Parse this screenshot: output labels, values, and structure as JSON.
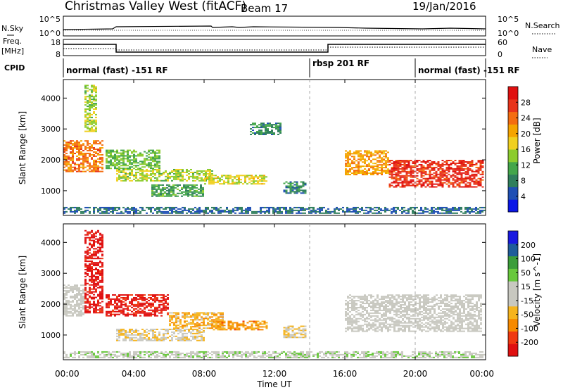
{
  "header": {
    "title": "Christmas Valley West (fitACF)",
    "beam": "Beam 17",
    "date": "19/Jan/2016"
  },
  "noise_panel": {
    "left_label": "N.Sky",
    "right_label": "N.Search",
    "left_ticks": [
      "10^5",
      "10^0"
    ],
    "right_ticks": [
      "10^5",
      "10^0"
    ]
  },
  "freq_panel": {
    "left_label_line1": "Freq.",
    "left_label_line2": "[MHz]",
    "right_label": "Nave",
    "left_ticks": [
      "18",
      "8"
    ],
    "right_ticks": [
      "60",
      "0"
    ]
  },
  "cpid_panel": {
    "label": "CPID",
    "programs": [
      {
        "name": "normal (fast) -151 RF",
        "start_hour": 0,
        "end_hour": 14
      },
      {
        "name": "rbsp 201 RF",
        "start_hour": 14,
        "end_hour": 20
      },
      {
        "name": "normal (fast) -151 RF",
        "start_hour": 20,
        "end_hour": 24
      }
    ]
  },
  "x_axis": {
    "label": "Time UT",
    "ticks": [
      "00:00",
      "04:00",
      "08:00",
      "12:00",
      "16:00",
      "20:00",
      "00:00"
    ]
  },
  "colors": {
    "power": [
      "#0a16e6",
      "#1f4fb4",
      "#2f7e5c",
      "#43a64a",
      "#8ccc2e",
      "#f0d020",
      "#f5a400",
      "#f46d10",
      "#e8341a",
      "#e01010"
    ],
    "velocity": [
      "#e01010",
      "#f03a10",
      "#f78a00",
      "#f5b41e",
      "#c8c8c0",
      "#c8c8c0",
      "#68c83c",
      "#3b9d3a",
      "#1f5d9a",
      "#1a1ae0"
    ]
  },
  "chart_data": [
    {
      "type": "heatmap",
      "name": "power",
      "ylabel": "Slant Range [km]",
      "y_ticks": [
        1000,
        2000,
        3000,
        4000
      ],
      "ylim": [
        200,
        4600
      ],
      "xlim": [
        0,
        24
      ],
      "colorbar": {
        "label": "Power [dB]",
        "ticks": [
          "28",
          "24",
          "20",
          "16",
          "12",
          "8",
          "4"
        ],
        "range": [
          0,
          30
        ]
      },
      "echo_regions": [
        {
          "t0": 0.0,
          "t1": 2.2,
          "r0": 1600,
          "r1": 2600,
          "value": 22
        },
        {
          "t0": 1.2,
          "t1": 1.9,
          "r0": 2900,
          "r1": 4400,
          "value": 14
        },
        {
          "t0": 2.4,
          "t1": 5.5,
          "r0": 1700,
          "r1": 2300,
          "value": 12
        },
        {
          "t0": 3.0,
          "t1": 8.5,
          "r0": 1300,
          "r1": 1700,
          "value": 14
        },
        {
          "t0": 5.0,
          "t1": 8.0,
          "r0": 800,
          "r1": 1200,
          "value": 10
        },
        {
          "t0": 8.0,
          "t1": 11.5,
          "r0": 1200,
          "r1": 1500,
          "value": 16
        },
        {
          "t0": 12.5,
          "t1": 13.8,
          "r0": 900,
          "r1": 1300,
          "value": 8
        },
        {
          "t0": 10.6,
          "t1": 12.3,
          "r0": 2800,
          "r1": 3200,
          "value": 8
        },
        {
          "t0": 16.0,
          "t1": 18.5,
          "r0": 1500,
          "r1": 2300,
          "value": 20
        },
        {
          "t0": 18.5,
          "t1": 23.8,
          "r0": 1100,
          "r1": 2000,
          "value": 26
        },
        {
          "t0": 0.0,
          "t1": 24.0,
          "r0": 250,
          "r1": 450,
          "value": 6
        }
      ]
    },
    {
      "type": "heatmap",
      "name": "velocity",
      "ylabel": "Slant Range [km]",
      "y_ticks": [
        1000,
        2000,
        3000,
        4000
      ],
      "ylim": [
        200,
        4600
      ],
      "xlim": [
        0,
        24
      ],
      "colorbar": {
        "label": "Velocity [m s^-1]",
        "ticks": [
          "200",
          "100",
          "50",
          "15",
          "-15",
          "-50",
          "-100",
          "-200"
        ],
        "range": [
          -250,
          250
        ]
      },
      "echo_regions": [
        {
          "t0": 0.0,
          "t1": 1.2,
          "r0": 1600,
          "r1": 2600,
          "value": 0
        },
        {
          "t0": 1.2,
          "t1": 2.2,
          "r0": 1700,
          "r1": 4400,
          "value": -230
        },
        {
          "t0": 2.4,
          "t1": 6.0,
          "r0": 1600,
          "r1": 2300,
          "value": -220
        },
        {
          "t0": 6.0,
          "t1": 9.0,
          "r0": 1200,
          "r1": 1700,
          "value": -80
        },
        {
          "t0": 3.0,
          "t1": 8.0,
          "r0": 800,
          "r1": 1200,
          "value": -45
        },
        {
          "t0": 8.5,
          "t1": 11.5,
          "r0": 1150,
          "r1": 1450,
          "value": -110
        },
        {
          "t0": 12.5,
          "t1": 13.8,
          "r0": 900,
          "r1": 1300,
          "value": -45
        },
        {
          "t0": 16.0,
          "t1": 23.8,
          "r0": 1100,
          "r1": 2300,
          "value": 0
        },
        {
          "t0": 0.0,
          "t1": 24.0,
          "r0": 250,
          "r1": 450,
          "value": 30
        }
      ]
    }
  ]
}
